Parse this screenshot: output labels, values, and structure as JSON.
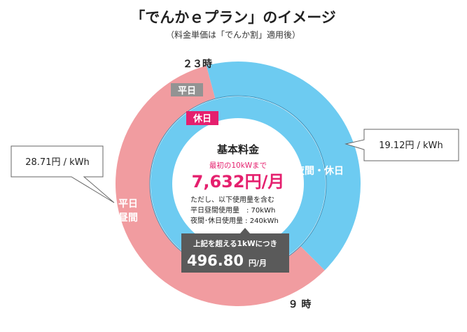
{
  "title": "「でんかｅプラン」のイメージ",
  "subtitle": "（料金単価は「でんか割」適用後）",
  "colors": {
    "weekday_day": "#f19ca0",
    "night_holiday": "#6dcbf1",
    "center": "#ffffff",
    "accent": "#e5206e",
    "label_weekday_bg": "#939393",
    "label_holiday_bg": "#e5206e",
    "callout_bg": "#5a5a5a"
  },
  "chart_data": {
    "type": "pie",
    "title": "「でんかｅプラン」のイメージ",
    "rings": [
      {
        "name": "平日",
        "slices": [
          {
            "label": "夜間・休日",
            "from_hour": 23,
            "to_hour": 9,
            "color": "#6dcbf1"
          },
          {
            "label": "平日昼間",
            "from_hour": 9,
            "to_hour": 23,
            "color": "#f19ca0"
          }
        ]
      },
      {
        "name": "休日",
        "slices": [
          {
            "label": "夜間・休日",
            "from_hour": 0,
            "to_hour": 24,
            "color": "#6dcbf1"
          }
        ]
      }
    ],
    "hour_labels": [
      "２３時",
      "９ 時"
    ],
    "rates": [
      {
        "label": "平日昼間",
        "value": "28.71円 / kWh"
      },
      {
        "label": "夜間・休日",
        "value": "19.12円 / kWh"
      }
    ]
  },
  "labels": {
    "ring_weekday": "平日",
    "ring_holiday": "休日",
    "night_holiday": "夜間・休日",
    "weekday_day_line1": "平日",
    "weekday_day_line2": "昼間",
    "hour_23": "２３時",
    "hour_9": "９ 時",
    "rate_left": "28.71円 / kWh",
    "rate_right": "19.12円 / kWh"
  },
  "center": {
    "heading": "基本料金",
    "first_kw": "最初の10kWまで",
    "price": "7,632円/月",
    "note_line1": "ただし、以下使用量を含む",
    "note_line2": "平日昼間使用量　: 70kWh",
    "note_line3": "夜間･休日使用量 : 240kWh"
  },
  "callout": {
    "line1": "上記を超える1kWにつき",
    "amount": "496.80",
    "unit": "円/月"
  }
}
